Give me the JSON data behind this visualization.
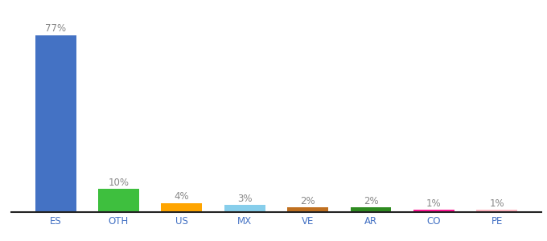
{
  "categories": [
    "ES",
    "OTH",
    "US",
    "MX",
    "VE",
    "AR",
    "CO",
    "PE"
  ],
  "values": [
    77,
    10,
    4,
    3,
    2,
    2,
    1,
    1
  ],
  "bar_colors": [
    "#4472C4",
    "#3EBF3E",
    "#FFA500",
    "#87CEEB",
    "#C07020",
    "#2E8B20",
    "#FF1493",
    "#FFB6C1"
  ],
  "ylim": [
    0,
    85
  ],
  "background_color": "#ffffff",
  "label_color": "#888888",
  "tick_color": "#4472C4",
  "label_fontsize": 8.5,
  "tick_fontsize": 8.5
}
